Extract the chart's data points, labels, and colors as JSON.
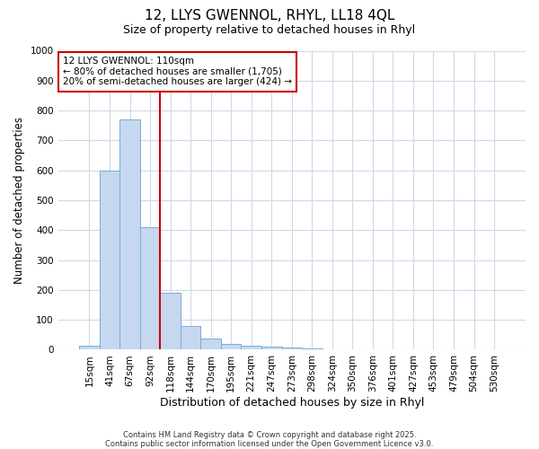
{
  "title1": "12, LLYS GWENNOL, RHYL, LL18 4QL",
  "title2": "Size of property relative to detached houses in Rhyl",
  "xlabel": "Distribution of detached houses by size in Rhyl",
  "ylabel": "Number of detached properties",
  "bar_labels": [
    "15sqm",
    "41sqm",
    "67sqm",
    "92sqm",
    "118sqm",
    "144sqm",
    "170sqm",
    "195sqm",
    "221sqm",
    "247sqm",
    "273sqm",
    "298sqm",
    "324sqm",
    "350sqm",
    "376sqm",
    "401sqm",
    "427sqm",
    "453sqm",
    "479sqm",
    "504sqm",
    "530sqm"
  ],
  "bar_values": [
    12,
    600,
    770,
    410,
    190,
    78,
    38,
    18,
    12,
    10,
    8,
    5,
    0,
    0,
    0,
    0,
    0,
    0,
    0,
    0,
    0
  ],
  "bar_color": "#c5d8f0",
  "bar_edge_color": "#7aabd4",
  "vline_index": 4,
  "vline_color": "#cc0000",
  "ylim": [
    0,
    1000
  ],
  "yticks": [
    0,
    100,
    200,
    300,
    400,
    500,
    600,
    700,
    800,
    900,
    1000
  ],
  "annotation_line1": "12 LLYS GWENNOL: 110sqm",
  "annotation_line2": "← 80% of detached houses are smaller (1,705)",
  "annotation_line3": "20% of semi-detached houses are larger (424) →",
  "annotation_box_color": "white",
  "annotation_box_edge": "#cc0000",
  "footer1": "Contains HM Land Registry data © Crown copyright and database right 2025.",
  "footer2": "Contains public sector information licensed under the Open Government Licence v3.0.",
  "bg_color": "#ffffff",
  "grid_color": "#d0d8e8",
  "title_fontsize": 11,
  "subtitle_fontsize": 9,
  "tick_fontsize": 7.5,
  "ylabel_fontsize": 8.5,
  "xlabel_fontsize": 9
}
